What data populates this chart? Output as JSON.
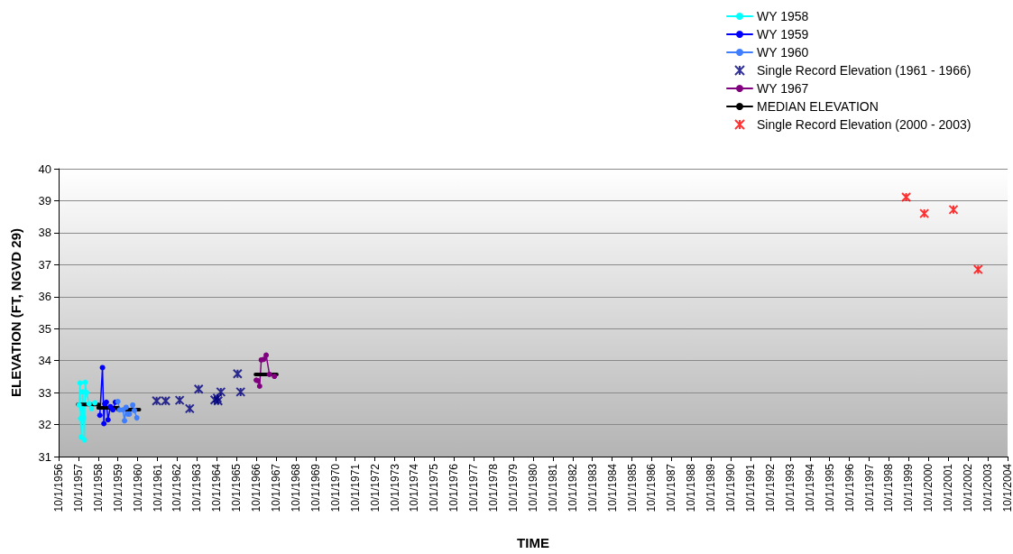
{
  "chart_data": {
    "type": "line",
    "xlabel": "TIME",
    "ylabel": "ELEVATION (FT, NGVD 29)",
    "legend": "top right",
    "grid": "y",
    "xlim": [
      "1956-10-01",
      "2004-10-01"
    ],
    "ylim": [
      31,
      40
    ],
    "yticks": [
      31,
      32,
      33,
      34,
      35,
      36,
      37,
      38,
      39,
      40
    ],
    "xticks": [
      {
        "value": "1956-10-01",
        "label": "10/1/1956"
      },
      {
        "value": "1957-10-01",
        "label": "10/1/1957"
      },
      {
        "value": "1958-10-01",
        "label": "10/1/1958"
      },
      {
        "value": "1959-10-01",
        "label": "10/1/1959"
      },
      {
        "value": "1960-10-01",
        "label": "10/1/1960"
      },
      {
        "value": "1961-10-01",
        "label": "10/1/1961"
      },
      {
        "value": "1962-10-01",
        "label": "10/1/1962"
      },
      {
        "value": "1963-10-01",
        "label": "10/1/1963"
      },
      {
        "value": "1964-10-01",
        "label": "10/1/1964"
      },
      {
        "value": "1965-10-01",
        "label": "10/1/1965"
      },
      {
        "value": "1966-10-01",
        "label": "10/1/1966"
      },
      {
        "value": "1967-10-01",
        "label": "10/1/1967"
      },
      {
        "value": "1968-10-01",
        "label": "10/1/1968"
      },
      {
        "value": "1969-10-01",
        "label": "10/1/1969"
      },
      {
        "value": "1970-10-01",
        "label": "10/1/1970"
      },
      {
        "value": "1971-10-01",
        "label": "10/1/1971"
      },
      {
        "value": "1972-10-01",
        "label": "10/1/1972"
      },
      {
        "value": "1973-10-01",
        "label": "10/1/1973"
      },
      {
        "value": "1974-10-01",
        "label": "10/1/1974"
      },
      {
        "value": "1975-10-01",
        "label": "10/1/1975"
      },
      {
        "value": "1976-10-01",
        "label": "10/1/1976"
      },
      {
        "value": "1977-10-01",
        "label": "10/1/1977"
      },
      {
        "value": "1978-10-01",
        "label": "10/1/1978"
      },
      {
        "value": "1979-10-01",
        "label": "10/1/1979"
      },
      {
        "value": "1980-10-01",
        "label": "10/1/1980"
      },
      {
        "value": "1981-10-01",
        "label": "10/1/1981"
      },
      {
        "value": "1982-10-01",
        "label": "10/1/1982"
      },
      {
        "value": "1983-10-01",
        "label": "10/1/1983"
      },
      {
        "value": "1984-10-01",
        "label": "10/1/1984"
      },
      {
        "value": "1985-10-01",
        "label": "10/1/1985"
      },
      {
        "value": "1986-10-01",
        "label": "10/1/1986"
      },
      {
        "value": "1987-10-01",
        "label": "10/1/1987"
      },
      {
        "value": "1988-10-01",
        "label": "10/1/1988"
      },
      {
        "value": "1989-10-01",
        "label": "10/1/1989"
      },
      {
        "value": "1990-10-01",
        "label": "10/1/1990"
      },
      {
        "value": "1991-10-01",
        "label": "10/1/1991"
      },
      {
        "value": "1992-10-01",
        "label": "10/1/1992"
      },
      {
        "value": "1993-10-01",
        "label": "10/1/1993"
      },
      {
        "value": "1994-10-01",
        "label": "10/1/1994"
      },
      {
        "value": "1995-10-01",
        "label": "10/1/1995"
      },
      {
        "value": "1996-10-01",
        "label": "10/1/1996"
      },
      {
        "value": "1997-10-01",
        "label": "10/1/1997"
      },
      {
        "value": "1998-10-01",
        "label": "10/1/1998"
      },
      {
        "value": "1999-10-01",
        "label": "10/1/1999"
      },
      {
        "value": "2000-10-01",
        "label": "10/1/2000"
      },
      {
        "value": "2001-10-01",
        "label": "10/1/2001"
      },
      {
        "value": "2002-10-01",
        "label": "10/1/2002"
      },
      {
        "value": "2003-10-01",
        "label": "10/1/2003"
      },
      {
        "value": "2004-10-01",
        "label": "10/1/2004"
      }
    ],
    "series": [
      {
        "name": "WY 1958",
        "color": "#00ffff",
        "marker": "circle",
        "x": [
          "1957-10-15",
          "1957-11-01",
          "1957-11-10",
          "1957-11-20",
          "1957-12-05",
          "1957-12-20",
          "1958-01-05",
          "1958-01-20",
          "1958-02-05",
          "1958-03-01",
          "1958-04-15",
          "1958-06-01",
          "1958-08-01"
        ],
        "values": [
          32.61,
          33.3,
          32.19,
          31.61,
          32.49,
          33.02,
          32.21,
          31.52,
          33.32,
          33.0,
          32.65,
          32.5,
          32.68
        ]
      },
      {
        "name": "WY 1959",
        "color": "#0000ff",
        "marker": "circle",
        "x": [
          "1958-11-01",
          "1958-12-20",
          "1959-01-15",
          "1959-02-01",
          "1959-03-01",
          "1959-04-01",
          "1959-05-15",
          "1959-07-01",
          "1959-08-15"
        ],
        "values": [
          32.29,
          33.78,
          32.03,
          32.65,
          32.7,
          32.15,
          32.56,
          32.46,
          32.7
        ]
      },
      {
        "name": "WY 1960",
        "color": "#3f7fff",
        "marker": "circle",
        "x": [
          "1959-10-01",
          "1959-11-01",
          "1960-01-01",
          "1960-02-01",
          "1960-03-01",
          "1960-04-01",
          "1960-05-01",
          "1960-07-01",
          "1960-08-01",
          "1960-09-15"
        ],
        "values": [
          32.72,
          32.46,
          32.46,
          32.12,
          32.54,
          32.33,
          32.33,
          32.61,
          32.44,
          32.21
        ]
      },
      {
        "name": "Single Record Elevation (1961 - 1966)",
        "type": "scatter",
        "color": "#000080",
        "marker": "cross",
        "x": [
          "1961-09-15",
          "1962-03-01",
          "1962-11-15",
          "1963-05-20",
          "1963-11-01",
          "1964-08-25",
          "1964-10-10",
          "1964-10-25",
          "1964-12-15",
          "1965-10-20",
          "1965-12-15"
        ],
        "values": [
          32.74,
          32.74,
          32.76,
          32.5,
          33.11,
          32.77,
          32.83,
          32.74,
          33.02,
          33.59,
          33.02
        ]
      },
      {
        "name": "WY 1967",
        "color": "#800080",
        "marker": "circle",
        "x": [
          "1966-10-01",
          "1966-11-01",
          "1966-12-01",
          "1967-01-01",
          "1967-02-15",
          "1967-04-01",
          "1967-06-01",
          "1967-09-01"
        ],
        "values": [
          33.39,
          33.37,
          33.2,
          34.02,
          34.04,
          34.17,
          33.57,
          33.51
        ]
      },
      {
        "name": "MEDIAN ELEVATION",
        "color": "#000000",
        "marker": "none",
        "x": [
          "1957-09-20",
          "1958-10-15",
          "1958-10-10",
          "1958-10-01",
          "1959-10-05",
          "1959-10-03",
          "1959-10-01",
          "1960-11-01",
          "1962-01-01",
          "1966-09-15",
          "1967-10-15"
        ],
        "values": [
          32.63,
          32.63,
          null,
          32.52,
          32.52,
          null,
          32.47,
          32.47,
          null,
          33.57,
          33.57
        ]
      },
      {
        "name": "Single Record Elevation (2000 - 2003)",
        "type": "scatter",
        "color": "#ff0000",
        "marker": "cross",
        "x": [
          "1999-08-15",
          "2000-07-15",
          "2002-01-05",
          "2003-04-05"
        ],
        "values": [
          39.11,
          38.6,
          38.72,
          36.85
        ]
      }
    ]
  }
}
